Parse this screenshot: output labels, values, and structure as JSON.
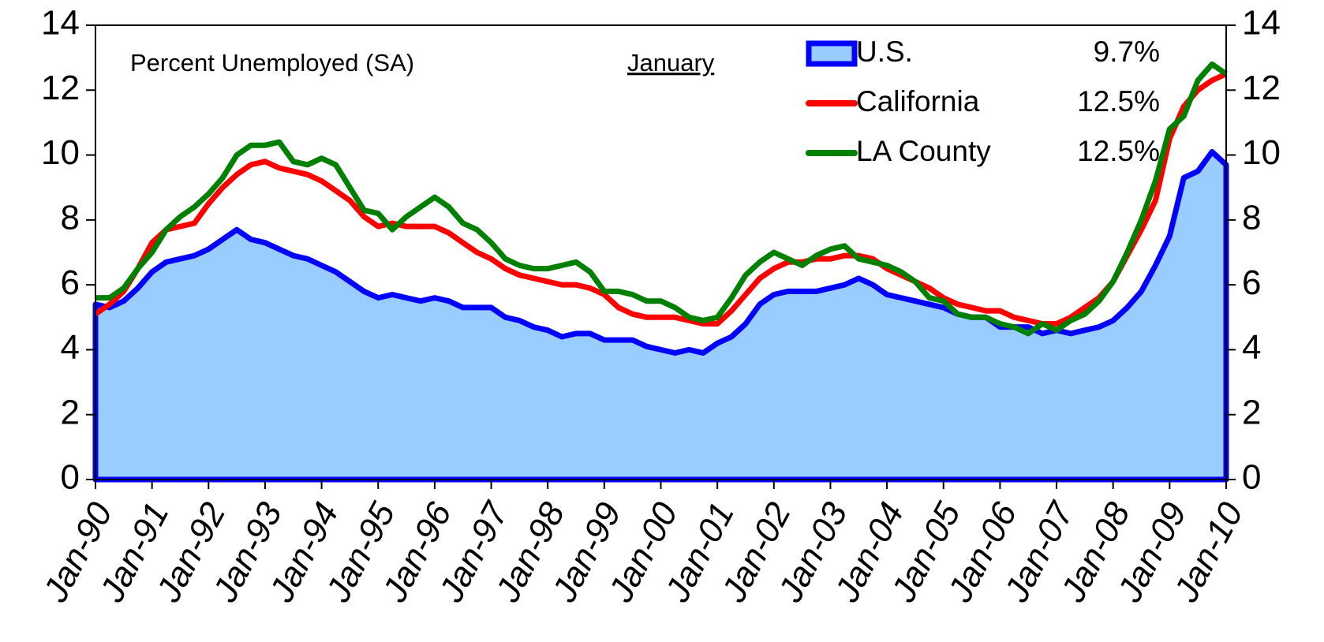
{
  "chart_data": {
    "type": "line",
    "annotation": "Percent Unemployed (SA)",
    "legend_title": "January",
    "x": [
      1990,
      1990.25,
      1990.5,
      1990.75,
      1991,
      1991.25,
      1991.5,
      1991.75,
      1992,
      1992.25,
      1992.5,
      1992.75,
      1993,
      1993.25,
      1993.5,
      1993.75,
      1994,
      1994.25,
      1994.5,
      1994.75,
      1995,
      1995.25,
      1995.5,
      1995.75,
      1996,
      1996.25,
      1996.5,
      1996.75,
      1997,
      1997.25,
      1997.5,
      1997.75,
      1998,
      1998.25,
      1998.5,
      1998.75,
      1999,
      1999.25,
      1999.5,
      1999.75,
      2000,
      2000.25,
      2000.5,
      2000.75,
      2001,
      2001.25,
      2001.5,
      2001.75,
      2002,
      2002.25,
      2002.5,
      2002.75,
      2003,
      2003.25,
      2003.5,
      2003.75,
      2004,
      2004.25,
      2004.5,
      2004.75,
      2005,
      2005.25,
      2005.5,
      2005.75,
      2006,
      2006.25,
      2006.5,
      2006.75,
      2007,
      2007.25,
      2007.5,
      2007.75,
      2008,
      2008.25,
      2008.5,
      2008.75,
      2009,
      2009.25,
      2009.5,
      2009.75,
      2010
    ],
    "xlim": [
      1990,
      2010
    ],
    "xticks": [
      {
        "value": 1990,
        "label": "Jan-90"
      },
      {
        "value": 1991,
        "label": "Jan-91"
      },
      {
        "value": 1992,
        "label": "Jan-92"
      },
      {
        "value": 1993,
        "label": "Jan-93"
      },
      {
        "value": 1994,
        "label": "Jan-94"
      },
      {
        "value": 1995,
        "label": "Jan-95"
      },
      {
        "value": 1996,
        "label": "Jan-96"
      },
      {
        "value": 1997,
        "label": "Jan-97"
      },
      {
        "value": 1998,
        "label": "Jan-98"
      },
      {
        "value": 1999,
        "label": "Jan-99"
      },
      {
        "value": 2000,
        "label": "Jan-00"
      },
      {
        "value": 2001,
        "label": "Jan-01"
      },
      {
        "value": 2002,
        "label": "Jan-02"
      },
      {
        "value": 2003,
        "label": "Jan-03"
      },
      {
        "value": 2004,
        "label": "Jan-04"
      },
      {
        "value": 2005,
        "label": "Jan-05"
      },
      {
        "value": 2006,
        "label": "Jan-06"
      },
      {
        "value": 2007,
        "label": "Jan-07"
      },
      {
        "value": 2008,
        "label": "Jan-08"
      },
      {
        "value": 2009,
        "label": "Jan-09"
      },
      {
        "value": 2010,
        "label": "Jan-10"
      }
    ],
    "ylim": [
      0,
      14
    ],
    "yticks": [
      0,
      2,
      4,
      6,
      8,
      10,
      12,
      14
    ],
    "y2lim": [
      0,
      14
    ],
    "y2ticks": [
      0,
      2,
      4,
      6,
      8,
      10,
      12,
      14
    ],
    "series": [
      {
        "name": "U.S.",
        "color": "#0000ff",
        "fill": "#99ccff",
        "area": true,
        "value_label": "9.7%",
        "values": [
          5.4,
          5.3,
          5.5,
          5.9,
          6.4,
          6.7,
          6.8,
          6.9,
          7.1,
          7.4,
          7.7,
          7.4,
          7.3,
          7.1,
          6.9,
          6.8,
          6.6,
          6.4,
          6.1,
          5.8,
          5.6,
          5.7,
          5.6,
          5.5,
          5.6,
          5.5,
          5.3,
          5.3,
          5.3,
          5.0,
          4.9,
          4.7,
          4.6,
          4.4,
          4.5,
          4.5,
          4.3,
          4.3,
          4.3,
          4.1,
          4.0,
          3.9,
          4.0,
          3.9,
          4.2,
          4.4,
          4.8,
          5.4,
          5.7,
          5.8,
          5.8,
          5.8,
          5.9,
          6.0,
          6.2,
          6.0,
          5.7,
          5.6,
          5.5,
          5.4,
          5.3,
          5.1,
          5.0,
          5.0,
          4.7,
          4.7,
          4.7,
          4.5,
          4.6,
          4.5,
          4.6,
          4.7,
          4.9,
          5.3,
          5.8,
          6.6,
          7.5,
          9.3,
          9.5,
          10.1,
          9.7
        ]
      },
      {
        "name": "California",
        "color": "#ff0000",
        "value_label": "12.5%",
        "values": [
          5.1,
          5.4,
          5.8,
          6.5,
          7.3,
          7.7,
          7.8,
          7.9,
          8.5,
          9.0,
          9.4,
          9.7,
          9.8,
          9.6,
          9.5,
          9.4,
          9.2,
          8.9,
          8.6,
          8.1,
          7.8,
          7.9,
          7.8,
          7.8,
          7.8,
          7.6,
          7.3,
          7.0,
          6.8,
          6.5,
          6.3,
          6.2,
          6.1,
          6.0,
          6.0,
          5.9,
          5.7,
          5.3,
          5.1,
          5.0,
          5.0,
          5.0,
          4.9,
          4.8,
          4.8,
          5.2,
          5.7,
          6.2,
          6.5,
          6.7,
          6.7,
          6.8,
          6.8,
          6.9,
          6.9,
          6.8,
          6.5,
          6.3,
          6.1,
          5.9,
          5.6,
          5.4,
          5.3,
          5.2,
          5.2,
          5.0,
          4.9,
          4.8,
          4.8,
          5.0,
          5.3,
          5.6,
          6.1,
          6.9,
          7.7,
          8.6,
          10.5,
          11.5,
          12.0,
          12.3,
          12.5
        ]
      },
      {
        "name": "LA County",
        "color": "#008000",
        "value_label": "12.5%",
        "values": [
          5.6,
          5.6,
          5.9,
          6.5,
          7.0,
          7.7,
          8.1,
          8.4,
          8.8,
          9.3,
          10.0,
          10.3,
          10.3,
          10.4,
          9.8,
          9.7,
          9.9,
          9.7,
          9.0,
          8.3,
          8.2,
          7.7,
          8.1,
          8.4,
          8.7,
          8.4,
          7.9,
          7.7,
          7.3,
          6.8,
          6.6,
          6.5,
          6.5,
          6.6,
          6.7,
          6.4,
          5.8,
          5.8,
          5.7,
          5.5,
          5.5,
          5.3,
          5.0,
          4.9,
          5.0,
          5.6,
          6.3,
          6.7,
          7.0,
          6.8,
          6.6,
          6.9,
          7.1,
          7.2,
          6.8,
          6.7,
          6.6,
          6.4,
          6.1,
          5.6,
          5.5,
          5.1,
          5.0,
          5.0,
          4.8,
          4.7,
          4.5,
          4.8,
          4.6,
          4.9,
          5.1,
          5.5,
          6.1,
          7.0,
          8.0,
          9.2,
          10.8,
          11.2,
          12.3,
          12.8,
          12.5
        ]
      }
    ]
  }
}
